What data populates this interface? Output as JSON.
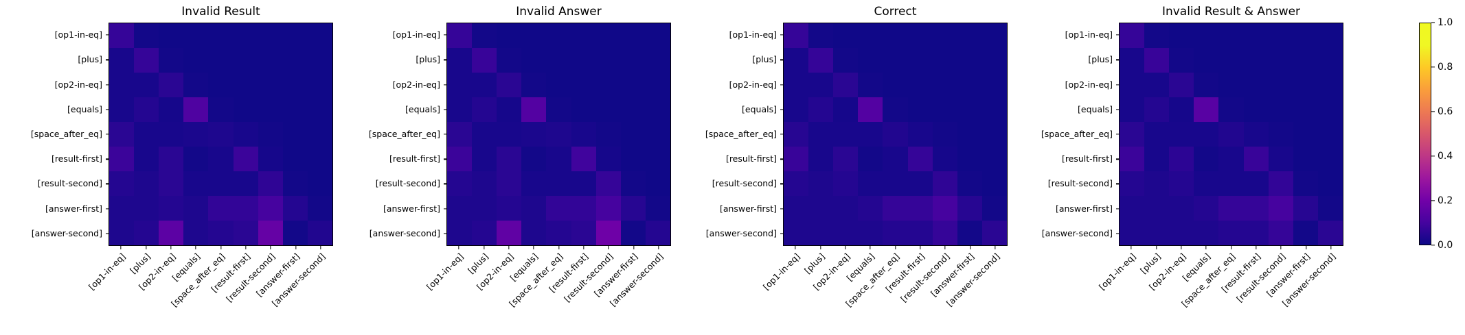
{
  "figure": {
    "background": "#ffffff"
  },
  "chart_data": {
    "type": "heatmap",
    "colormap": "plasma",
    "vmin": 0.0,
    "vmax": 1.0,
    "colormap_anchors": [
      "#0d0887",
      "#46039f",
      "#7201a8",
      "#9c179e",
      "#bd3786",
      "#d8576b",
      "#ed7953",
      "#fa9e3b",
      "#fdc926",
      "#f0f724",
      "#f0f921"
    ],
    "categories": [
      "[op1-in-eq]",
      "[plus]",
      "[op2-in-eq]",
      "[equals]",
      "[space_after_eq]",
      "[result-first]",
      "[result-second]",
      "[answer-first]",
      "[answer-second]"
    ],
    "charts": [
      {
        "title": "Invalid Result",
        "matrix": [
          [
            0.07,
            0.01,
            0.005,
            0.005,
            0.005,
            0.005,
            0.005,
            0.005,
            0.005
          ],
          [
            0.02,
            0.07,
            0.01,
            0.005,
            0.005,
            0.005,
            0.005,
            0.005,
            0.005
          ],
          [
            0.02,
            0.02,
            0.05,
            0.01,
            0.005,
            0.005,
            0.005,
            0.005,
            0.005
          ],
          [
            0.02,
            0.04,
            0.015,
            0.12,
            0.01,
            0.005,
            0.005,
            0.005,
            0.005
          ],
          [
            0.05,
            0.02,
            0.02,
            0.025,
            0.03,
            0.02,
            0.01,
            0.005,
            0.005
          ],
          [
            0.08,
            0.02,
            0.05,
            0.01,
            0.02,
            0.08,
            0.015,
            0.005,
            0.005
          ],
          [
            0.04,
            0.03,
            0.05,
            0.02,
            0.02,
            0.02,
            0.06,
            0.01,
            0.005
          ],
          [
            0.03,
            0.03,
            0.04,
            0.03,
            0.065,
            0.065,
            0.1,
            0.04,
            0.01
          ],
          [
            0.03,
            0.04,
            0.15,
            0.03,
            0.04,
            0.05,
            0.17,
            0.01,
            0.035
          ]
        ]
      },
      {
        "title": "Invalid Answer",
        "matrix": [
          [
            0.07,
            0.01,
            0.005,
            0.005,
            0.005,
            0.005,
            0.005,
            0.005,
            0.005
          ],
          [
            0.02,
            0.075,
            0.01,
            0.005,
            0.005,
            0.005,
            0.005,
            0.005,
            0.005
          ],
          [
            0.02,
            0.02,
            0.05,
            0.01,
            0.005,
            0.005,
            0.005,
            0.005,
            0.005
          ],
          [
            0.02,
            0.04,
            0.015,
            0.13,
            0.01,
            0.005,
            0.005,
            0.005,
            0.005
          ],
          [
            0.05,
            0.02,
            0.02,
            0.025,
            0.03,
            0.02,
            0.01,
            0.005,
            0.005
          ],
          [
            0.08,
            0.02,
            0.05,
            0.01,
            0.02,
            0.09,
            0.015,
            0.005,
            0.005
          ],
          [
            0.04,
            0.03,
            0.05,
            0.02,
            0.02,
            0.02,
            0.07,
            0.01,
            0.005
          ],
          [
            0.03,
            0.03,
            0.04,
            0.03,
            0.065,
            0.065,
            0.1,
            0.045,
            0.01
          ],
          [
            0.03,
            0.04,
            0.16,
            0.03,
            0.04,
            0.05,
            0.19,
            0.01,
            0.04
          ]
        ]
      },
      {
        "title": "Correct",
        "matrix": [
          [
            0.07,
            0.01,
            0.005,
            0.005,
            0.005,
            0.005,
            0.005,
            0.005,
            0.005
          ],
          [
            0.02,
            0.07,
            0.01,
            0.005,
            0.005,
            0.005,
            0.005,
            0.005,
            0.005
          ],
          [
            0.02,
            0.02,
            0.05,
            0.01,
            0.005,
            0.005,
            0.005,
            0.005,
            0.005
          ],
          [
            0.02,
            0.04,
            0.015,
            0.13,
            0.01,
            0.005,
            0.005,
            0.005,
            0.005
          ],
          [
            0.045,
            0.02,
            0.02,
            0.02,
            0.035,
            0.02,
            0.01,
            0.005,
            0.005
          ],
          [
            0.075,
            0.02,
            0.05,
            0.01,
            0.02,
            0.07,
            0.015,
            0.005,
            0.005
          ],
          [
            0.04,
            0.03,
            0.04,
            0.02,
            0.02,
            0.02,
            0.06,
            0.01,
            0.005
          ],
          [
            0.03,
            0.03,
            0.03,
            0.04,
            0.07,
            0.07,
            0.1,
            0.045,
            0.01
          ],
          [
            0.03,
            0.03,
            0.03,
            0.03,
            0.04,
            0.04,
            0.07,
            0.01,
            0.05
          ]
        ]
      },
      {
        "title": "Invalid Result & Answer",
        "matrix": [
          [
            0.07,
            0.01,
            0.005,
            0.005,
            0.005,
            0.005,
            0.005,
            0.005,
            0.005
          ],
          [
            0.02,
            0.075,
            0.01,
            0.005,
            0.005,
            0.005,
            0.005,
            0.005,
            0.005
          ],
          [
            0.02,
            0.02,
            0.05,
            0.01,
            0.005,
            0.005,
            0.005,
            0.005,
            0.005
          ],
          [
            0.02,
            0.04,
            0.015,
            0.14,
            0.01,
            0.005,
            0.005,
            0.005,
            0.005
          ],
          [
            0.05,
            0.02,
            0.02,
            0.02,
            0.035,
            0.02,
            0.01,
            0.005,
            0.005
          ],
          [
            0.08,
            0.02,
            0.055,
            0.01,
            0.02,
            0.075,
            0.02,
            0.005,
            0.005
          ],
          [
            0.04,
            0.03,
            0.04,
            0.02,
            0.02,
            0.02,
            0.065,
            0.01,
            0.005
          ],
          [
            0.03,
            0.03,
            0.03,
            0.04,
            0.07,
            0.07,
            0.1,
            0.045,
            0.01
          ],
          [
            0.03,
            0.03,
            0.03,
            0.03,
            0.04,
            0.04,
            0.07,
            0.01,
            0.05
          ]
        ]
      }
    ],
    "colorbar": {
      "tick_values": [
        1.0,
        0.8,
        0.6,
        0.4,
        0.2,
        0.0
      ],
      "tick_labels": [
        "1.0",
        "0.8",
        "0.6",
        "0.4",
        "0.2",
        "0.0"
      ]
    }
  }
}
